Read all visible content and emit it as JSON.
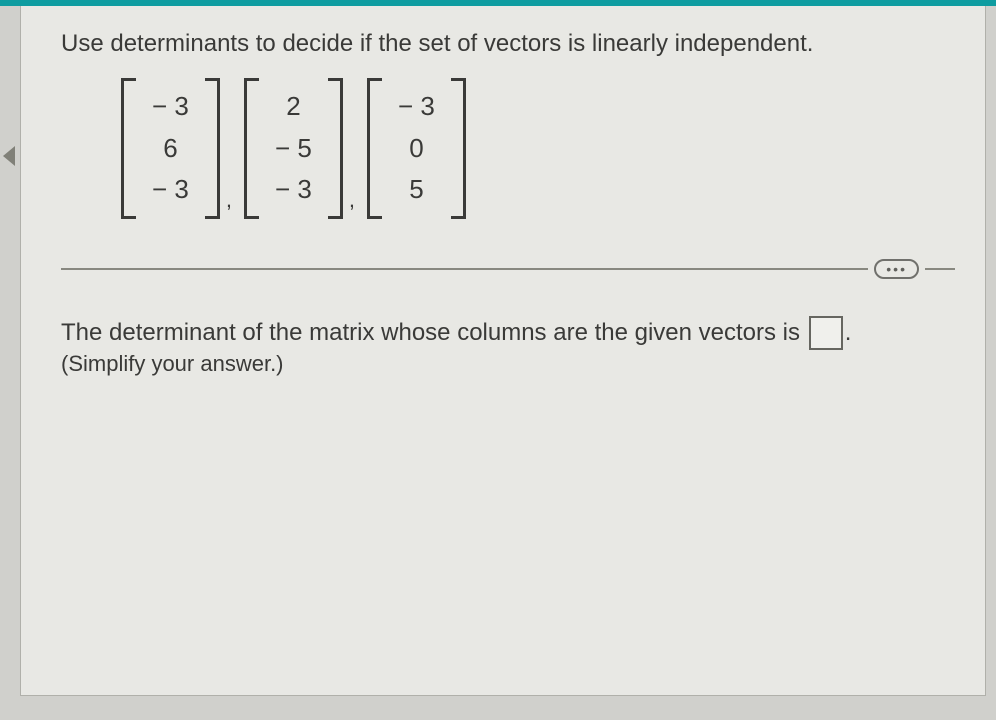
{
  "instruction": "Use determinants to decide if the set of vectors is linearly independent.",
  "vectors": [
    {
      "values": [
        "− 3",
        "6",
        "− 3"
      ]
    },
    {
      "values": [
        "2",
        "− 5",
        "− 3"
      ]
    },
    {
      "values": [
        "− 3",
        "0",
        "5"
      ]
    }
  ],
  "dots_label": "•••",
  "answer_prompt_pre": "The determinant of the matrix whose columns are the given vectors is ",
  "answer_prompt_post": ".",
  "hint": "(Simplify your answer.)",
  "colors": {
    "teal": "#0e9ca0",
    "page_bg": "#e8e8e4",
    "text": "#3a3a38",
    "line": "#888880"
  }
}
